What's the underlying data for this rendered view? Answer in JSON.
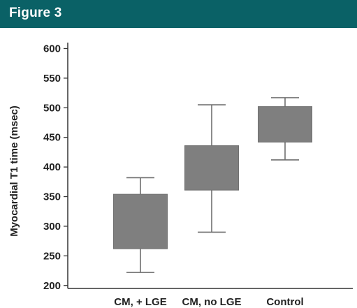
{
  "header": {
    "title": "Figure 3"
  },
  "colors": {
    "header_bg": "#0a6166",
    "box_fill": "#7f7f7f",
    "whisker": "#6f6f6f",
    "axis": "#333333"
  },
  "chart_data": {
    "type": "box",
    "title": "",
    "xlabel": "",
    "ylabel": "Myocardial T1 time (msec)",
    "ylim": [
      195,
      610
    ],
    "yticks": [
      200,
      250,
      300,
      350,
      400,
      450,
      500,
      550,
      600
    ],
    "grid": false,
    "categories": [
      "CM, + LGE",
      "CM, no LGE",
      "Control"
    ],
    "boxes": [
      {
        "category": "CM, + LGE",
        "whisker_low": 222,
        "q1": 262,
        "q3": 354,
        "whisker_high": 382
      },
      {
        "category": "CM, no LGE",
        "whisker_low": 290,
        "q1": 361,
        "q3": 436,
        "whisker_high": 505
      },
      {
        "category": "Control",
        "whisker_low": 412,
        "q1": 442,
        "q3": 502,
        "whisker_high": 517
      }
    ]
  }
}
